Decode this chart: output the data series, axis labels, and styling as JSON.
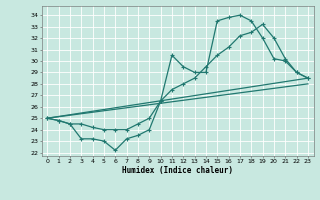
{
  "xlabel": "Humidex (Indice chaleur)",
  "xlim": [
    -0.5,
    23.5
  ],
  "ylim": [
    21.7,
    34.8
  ],
  "yticks": [
    22,
    23,
    24,
    25,
    26,
    27,
    28,
    29,
    30,
    31,
    32,
    33,
    34
  ],
  "xticks": [
    0,
    1,
    2,
    3,
    4,
    5,
    6,
    7,
    8,
    9,
    10,
    11,
    12,
    13,
    14,
    15,
    16,
    17,
    18,
    19,
    20,
    21,
    22,
    23
  ],
  "bg_color": "#c8e8e0",
  "grid_color": "#b0d8d0",
  "line_color": "#217870",
  "line1_x": [
    0,
    1,
    2,
    3,
    4,
    5,
    6,
    7,
    8,
    9,
    10,
    11,
    12,
    13,
    14,
    15,
    16,
    17,
    18,
    19,
    20,
    21,
    22,
    23
  ],
  "line1_y": [
    25.0,
    24.8,
    24.5,
    23.2,
    23.2,
    23.0,
    22.2,
    23.2,
    23.5,
    24.0,
    26.5,
    30.5,
    29.5,
    29.0,
    29.0,
    33.5,
    33.8,
    34.0,
    33.5,
    32.0,
    30.2,
    30.0,
    29.0,
    28.5
  ],
  "line2_x": [
    0,
    1,
    2,
    3,
    4,
    5,
    6,
    7,
    8,
    9,
    10,
    11,
    12,
    13,
    14,
    15,
    16,
    17,
    18,
    19,
    20,
    21,
    22,
    23
  ],
  "line2_y": [
    25.0,
    24.8,
    24.5,
    24.5,
    24.2,
    24.0,
    24.0,
    24.0,
    24.5,
    25.0,
    26.5,
    27.5,
    28.0,
    28.5,
    29.5,
    30.5,
    31.2,
    32.2,
    32.5,
    33.2,
    32.0,
    30.2,
    29.0,
    28.5
  ],
  "line3_x": [
    0,
    23
  ],
  "line3_y": [
    25.0,
    28.5
  ],
  "line4_x": [
    0,
    23
  ],
  "line4_y": [
    25.0,
    28.0
  ]
}
